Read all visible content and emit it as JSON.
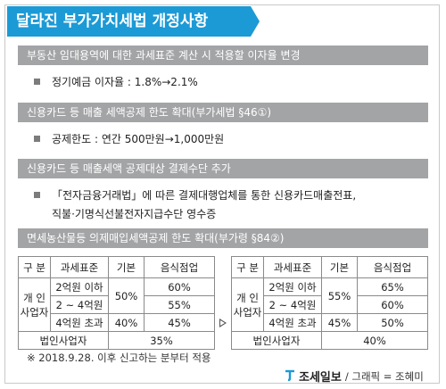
{
  "title": "달라진 부가가치세법 개정사항",
  "sections": [
    {
      "heading": "부동산 임대용역에 대한 과세표준 계산 시 적용할 이자율 변경",
      "bullet": "정기예금 이자율 : 1.8%→2.1%"
    },
    {
      "heading": "신용카드 등 매출 세액공제 한도 확대(부가세법 §46①)",
      "bullet": "공제한도 : 연간 500만원→1,000만원"
    },
    {
      "heading": "신용카드 등 매출세액 공제대상 결제수단 추가",
      "bullet_line1": "「전자금융거래법」에 따른 결제대행업체를 통한 신용카드매출전표,",
      "bullet_line2": "직불·기명식선불전자지급수단 영수증"
    },
    {
      "heading": "면세농산물등 의제매입세액공제 한도 확대(부가령 §84②)"
    }
  ],
  "table_headers": {
    "gubun": "구 분",
    "base": "과세표준",
    "rate": "기본",
    "food": "음식점업"
  },
  "row_labels": {
    "individual": "개 인\n사업자",
    "corporate": "법인사업자"
  },
  "tables": {
    "before": {
      "rows": [
        {
          "base": "2억원 이하",
          "food": "60%"
        },
        {
          "base": "2 ~ 4억원",
          "food": "55%"
        },
        {
          "base": "4억원 초과",
          "rate": "40%",
          "food": "45%"
        }
      ],
      "rate_top": "50%",
      "corporate": "35%"
    },
    "after": {
      "rows": [
        {
          "base": "2억원 이하",
          "food": "65%"
        },
        {
          "base": "2 ~ 4억원",
          "food": "60%"
        },
        {
          "base": "4억원 초과",
          "rate": "45%",
          "food": "50%"
        }
      ],
      "rate_top": "55%",
      "corporate": "40%"
    }
  },
  "note": "※ 2018.9.28. 이후 신고하는 분부터 적용",
  "footer": {
    "logo": "조세일보",
    "credit": "/ 그래픽 = 조혜미"
  },
  "colors": {
    "accent": "#1c9ad6",
    "bar": "#a3a4a6"
  }
}
